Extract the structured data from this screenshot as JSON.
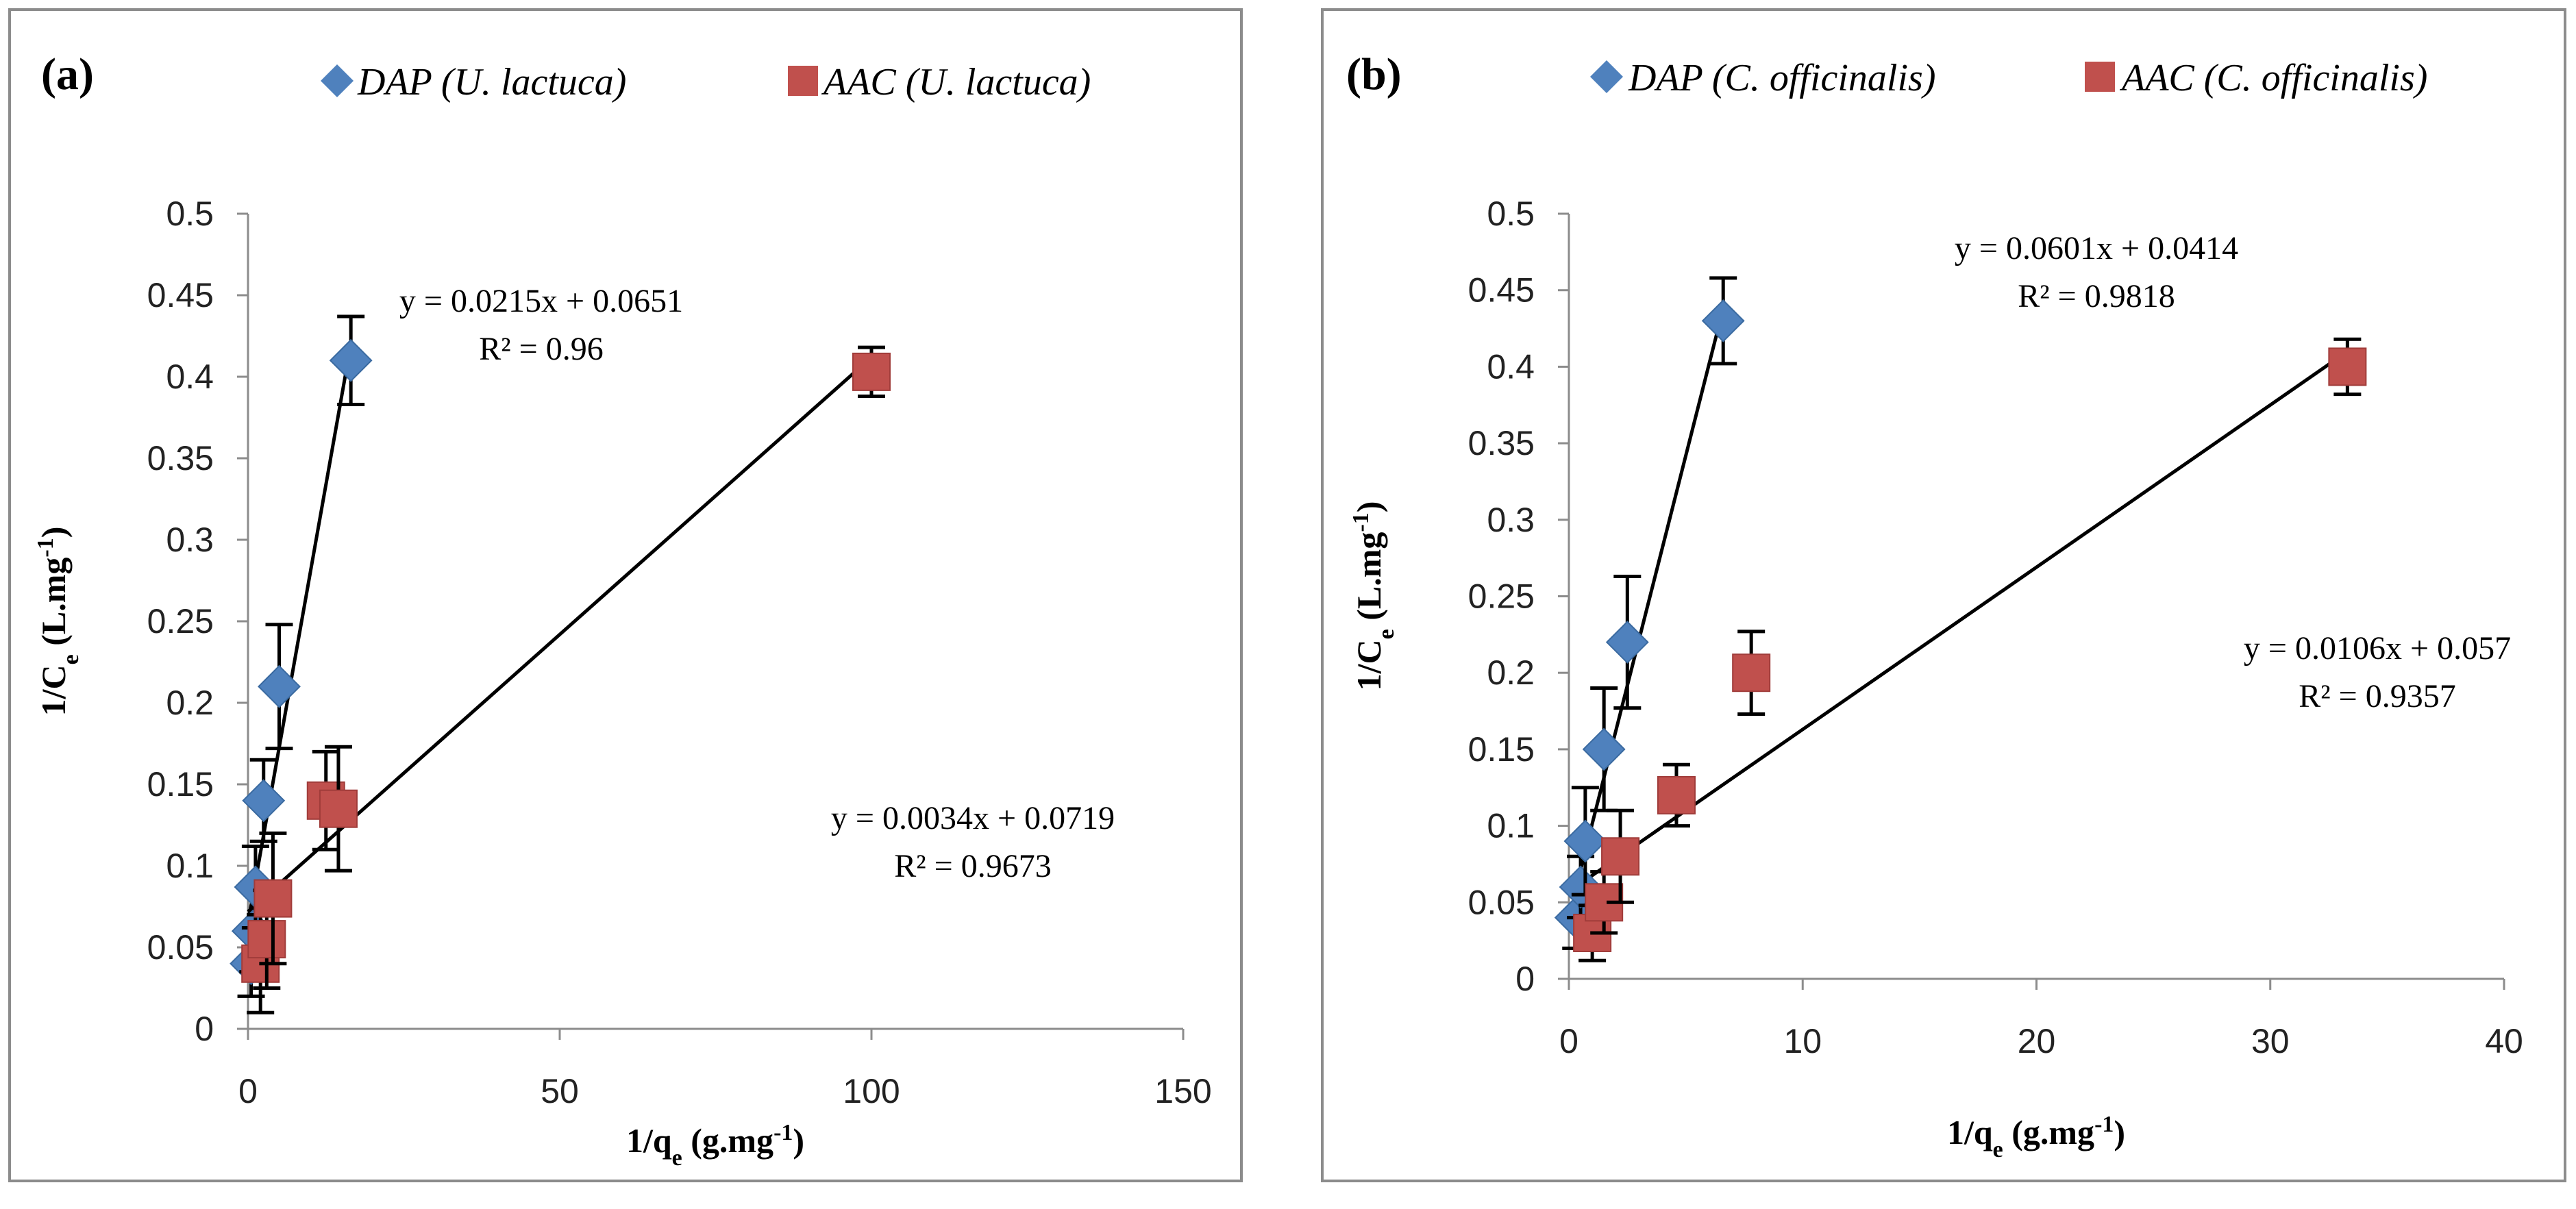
{
  "chart_data": [
    {
      "type": "scatter",
      "panel_label": "(a)",
      "xlabel": "1/q",
      "xlabel_sub": "e",
      "xlabel_unit": " (g.mg",
      "xlabel_sup": "-1",
      "xlabel_close": ")",
      "ylabel": "1/C",
      "ylabel_sub": "e",
      "ylabel_unit": " (L.mg",
      "ylabel_sup": "-1",
      "ylabel_close": ")",
      "xlim": [
        0,
        150
      ],
      "ylim": [
        0,
        0.5
      ],
      "x_ticks": [
        0,
        50,
        100,
        150
      ],
      "x_tick_labels": [
        "0",
        "50",
        "100",
        "150"
      ],
      "y_ticks": [
        0,
        0.05,
        0.1,
        0.15,
        0.2,
        0.25,
        0.3,
        0.35,
        0.4,
        0.45,
        0.5
      ],
      "y_tick_labels": [
        "0",
        "0.05",
        "0.1",
        "0.15",
        "0.2",
        "0.25",
        "0.3",
        "0.35",
        "0.4",
        "0.45",
        "0.5"
      ],
      "series": [
        {
          "name": "DAP (U. lactuca)",
          "marker": "diamond",
          "color": "#4f81bd",
          "points": [
            {
              "x": 0.5,
              "y": 0.04,
              "err": 0.02
            },
            {
              "x": 0.8,
              "y": 0.06,
              "err": 0.025
            },
            {
              "x": 1.2,
              "y": 0.087,
              "err": 0.025
            },
            {
              "x": 2.5,
              "y": 0.14,
              "err": 0.025
            },
            {
              "x": 5.0,
              "y": 0.21,
              "err": 0.038
            },
            {
              "x": 16.5,
              "y": 0.41,
              "err": 0.027
            }
          ],
          "fit": {
            "slope": 0.0215,
            "intercept": 0.0651,
            "x_range": [
              0,
              16.5
            ]
          },
          "equation": "y = 0.0215x + 0.0651",
          "r2": "R² = 0.96"
        },
        {
          "name": "AAC (U. lactuca)",
          "marker": "square",
          "color": "#c0504d",
          "points": [
            {
              "x": 2.0,
              "y": 0.04,
              "err": 0.03
            },
            {
              "x": 3.0,
              "y": 0.055,
              "err": 0.03
            },
            {
              "x": 4.0,
              "y": 0.08,
              "err": 0.04
            },
            {
              "x": 12.5,
              "y": 0.14,
              "err": 0.03
            },
            {
              "x": 14.5,
              "y": 0.135,
              "err": 0.038
            },
            {
              "x": 100.0,
              "y": 0.403,
              "err": 0.015
            }
          ],
          "fit": {
            "slope": 0.0034,
            "intercept": 0.0719,
            "x_range": [
              0,
              100
            ]
          },
          "equation": "y = 0.0034x + 0.0719",
          "r2": "R² = 0.9673"
        }
      ]
    },
    {
      "type": "scatter",
      "panel_label": "(b)",
      "xlabel": "1/q",
      "xlabel_sub": "e",
      "xlabel_unit": " (g.mg",
      "xlabel_sup": "-1",
      "xlabel_close": ")",
      "ylabel": "1/C",
      "ylabel_sub": "e",
      "ylabel_unit": " (L.mg",
      "ylabel_sup": "-1",
      "ylabel_close": ")",
      "xlim": [
        0,
        40
      ],
      "ylim": [
        0,
        0.5
      ],
      "x_ticks": [
        0,
        10,
        20,
        30,
        40
      ],
      "x_tick_labels": [
        "0",
        "10",
        "20",
        "30",
        "40"
      ],
      "y_ticks": [
        0,
        0.05,
        0.1,
        0.15,
        0.2,
        0.25,
        0.3,
        0.35,
        0.4,
        0.45,
        0.5
      ],
      "y_tick_labels": [
        "0",
        "0.05",
        "0.1",
        "0.15",
        "0.2",
        "0.25",
        "0.3",
        "0.35",
        "0.4",
        "0.45",
        "0.5"
      ],
      "series": [
        {
          "name": "DAP (C. officinalis)",
          "marker": "diamond",
          "color": "#4f81bd",
          "points": [
            {
              "x": 0.3,
              "y": 0.04,
              "err": 0.02
            },
            {
              "x": 0.5,
              "y": 0.06,
              "err": 0.02
            },
            {
              "x": 0.7,
              "y": 0.09,
              "err": 0.035
            },
            {
              "x": 1.5,
              "y": 0.15,
              "err": 0.04
            },
            {
              "x": 2.5,
              "y": 0.22,
              "err": 0.043
            },
            {
              "x": 6.6,
              "y": 0.43,
              "err": 0.028
            }
          ],
          "fit": {
            "slope": 0.0601,
            "intercept": 0.0414,
            "x_range": [
              0.3,
              6.6
            ]
          },
          "equation": "y = 0.0601x + 0.0414",
          "r2": "R² = 0.9818"
        },
        {
          "name": "AAC (C. officinalis)",
          "marker": "square",
          "color": "#c0504d",
          "points": [
            {
              "x": 1.0,
              "y": 0.03,
              "err": 0.018
            },
            {
              "x": 1.5,
              "y": 0.05,
              "err": 0.02
            },
            {
              "x": 2.2,
              "y": 0.08,
              "err": 0.03
            },
            {
              "x": 4.6,
              "y": 0.12,
              "err": 0.02
            },
            {
              "x": 7.8,
              "y": 0.2,
              "err": 0.027
            },
            {
              "x": 33.3,
              "y": 0.4,
              "err": 0.018
            }
          ],
          "fit": {
            "slope": 0.0106,
            "intercept": 0.057,
            "x_range": [
              0.5,
              33.3
            ]
          },
          "equation": "y = 0.0106x + 0.057",
          "r2": "R² = 0.9357"
        }
      ]
    }
  ]
}
